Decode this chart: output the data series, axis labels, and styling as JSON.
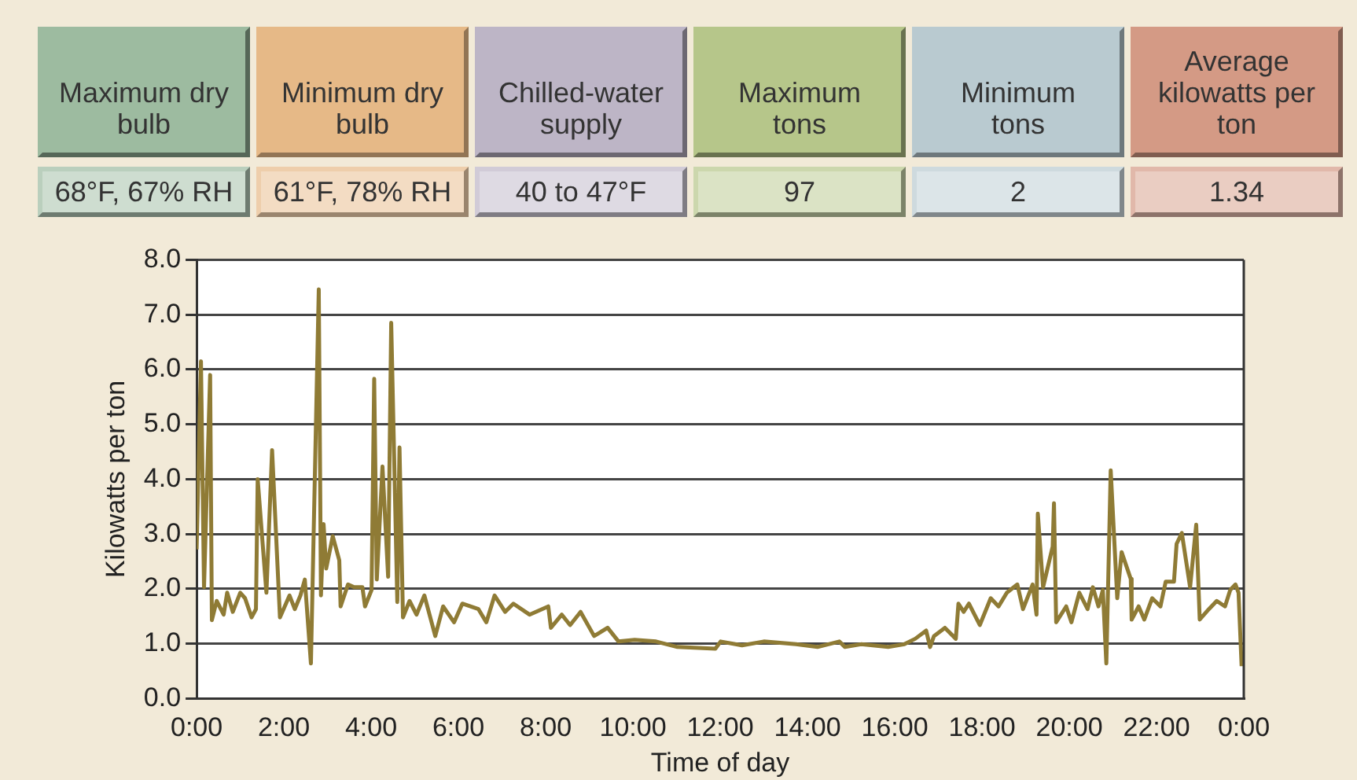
{
  "chart_data": [
    {
      "type": "other",
      "categories": [
        "Maximum dry bulb",
        "Minimum dry bulb",
        "Chilled-water supply",
        "Maximum tons",
        "Minimum tons",
        "Average kilowatts per ton"
      ],
      "annotations": [
        "68°F, 67% RH",
        "61°F, 78% RH",
        "40 to 47°F",
        "97",
        "2",
        "1.34"
      ],
      "colors": [
        "#9dbba0",
        "#e6b987",
        "#bdb5c6",
        "#b6c68a",
        "#b9cad0",
        "#d49a85"
      ]
    },
    {
      "type": "line",
      "xlabel": "Time of day",
      "ylabel": "Kilowatts per ton",
      "grid": "y",
      "legend": false,
      "marker": "none",
      "line_style": "solid",
      "xlim": [
        0,
        24
      ],
      "ylim": [
        0,
        8
      ],
      "xticks": [
        {
          "value": 0,
          "label": "0:00"
        },
        {
          "value": 2,
          "label": "2:00"
        },
        {
          "value": 4,
          "label": "4:00"
        },
        {
          "value": 6,
          "label": "6:00"
        },
        {
          "value": 8,
          "label": "8:00"
        },
        {
          "value": 10,
          "label": "10:00"
        },
        {
          "value": 12,
          "label": "12:00"
        },
        {
          "value": 14,
          "label": "14:00"
        },
        {
          "value": 16,
          "label": "16:00"
        },
        {
          "value": 18,
          "label": "18:00"
        },
        {
          "value": 20,
          "label": "20:00"
        },
        {
          "value": 22,
          "label": "22:00"
        },
        {
          "value": 24,
          "label": "0:00"
        }
      ],
      "yticks": [
        {
          "value": 0,
          "label": "0.0"
        },
        {
          "value": 1,
          "label": "1.0"
        },
        {
          "value": 2,
          "label": "2.0"
        },
        {
          "value": 3,
          "label": "3.0"
        },
        {
          "value": 4,
          "label": "4.0"
        },
        {
          "value": 5,
          "label": "5.0"
        },
        {
          "value": 6,
          "label": "6.0"
        },
        {
          "value": 7,
          "label": "7.0"
        },
        {
          "value": 8,
          "label": "8.0"
        }
      ],
      "series": [
        {
          "color": "#8f7b35",
          "x": [
            0,
            0.1,
            0.17,
            0.31,
            0.35,
            0.46,
            0.62,
            0.7,
            0.83,
            1.0,
            1.11,
            1.26,
            1.36,
            1.4,
            1.6,
            1.73,
            1.91,
            2.13,
            2.25,
            2.38,
            2.48,
            2.62,
            2.8,
            2.85,
            2.91,
            2.97,
            3.12,
            3.27,
            3.3,
            3.47,
            3.61,
            3.8,
            3.86,
            4.01,
            4.07,
            4.13,
            4.26,
            4.39,
            4.46,
            4.6,
            4.65,
            4.73,
            4.88,
            5.04,
            5.22,
            5.47,
            5.65,
            5.9,
            6.09,
            6.46,
            6.64,
            6.83,
            7.07,
            7.26,
            7.63,
            8.06,
            8.12,
            8.37,
            8.56,
            8.8,
            9.11,
            9.42,
            9.67,
            10.04,
            10.53,
            11.02,
            11.89,
            12.01,
            12.5,
            13.0,
            13.74,
            14.23,
            14.73,
            14.86,
            15.23,
            15.85,
            16.22,
            16.47,
            16.72,
            16.81,
            16.9,
            17.15,
            17.4,
            17.46,
            17.58,
            17.7,
            17.95,
            18.2,
            18.38,
            18.57,
            18.81,
            18.94,
            19.16,
            19.25,
            19.28,
            19.4,
            19.62,
            19.65,
            19.7,
            19.93,
            20.05,
            20.23,
            20.42,
            20.54,
            20.67,
            20.77,
            20.85,
            20.95,
            21.1,
            21.2,
            21.41,
            21.43,
            21.59,
            21.72,
            21.9,
            22.09,
            22.21,
            22.4,
            22.46,
            22.58,
            22.77,
            22.91,
            22.99,
            23.2,
            23.38,
            23.57,
            23.69,
            23.81,
            23.88,
            23.95
          ],
          "values": [
            2.72,
            6.15,
            2.03,
            5.9,
            1.43,
            1.78,
            1.53,
            1.93,
            1.58,
            1.93,
            1.83,
            1.48,
            1.63,
            4.0,
            1.93,
            4.53,
            1.48,
            1.88,
            1.63,
            1.88,
            2.17,
            0.64,
            7.46,
            1.88,
            3.18,
            2.37,
            2.96,
            2.52,
            1.68,
            2.08,
            2.03,
            2.03,
            1.68,
            1.98,
            5.83,
            2.17,
            4.23,
            2.22,
            6.85,
            1.76,
            4.58,
            1.48,
            1.78,
            1.53,
            1.88,
            1.14,
            1.68,
            1.39,
            1.73,
            1.63,
            1.39,
            1.88,
            1.58,
            1.73,
            1.53,
            1.68,
            1.29,
            1.53,
            1.34,
            1.58,
            1.14,
            1.29,
            1.04,
            1.07,
            1.04,
            0.94,
            0.91,
            1.04,
            0.97,
            1.04,
            0.99,
            0.94,
            1.04,
            0.94,
            0.99,
            0.94,
            0.99,
            1.09,
            1.24,
            0.94,
            1.14,
            1.29,
            1.09,
            1.73,
            1.58,
            1.73,
            1.34,
            1.83,
            1.68,
            1.93,
            2.08,
            1.63,
            2.08,
            1.53,
            3.37,
            2.03,
            2.77,
            3.56,
            1.39,
            1.68,
            1.39,
            1.93,
            1.63,
            2.03,
            1.68,
            1.98,
            0.64,
            4.16,
            1.83,
            2.67,
            2.18,
            1.44,
            1.68,
            1.44,
            1.83,
            1.68,
            2.13,
            2.13,
            2.82,
            3.02,
            2.03,
            3.17,
            1.44,
            1.63,
            1.78,
            1.68,
            1.98,
            2.08,
            1.93,
            0.59
          ]
        }
      ]
    }
  ]
}
